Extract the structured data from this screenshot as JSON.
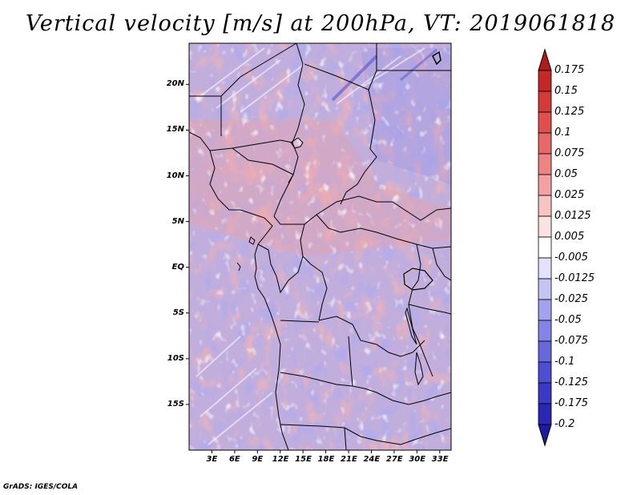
{
  "title": "Vertical velocity [m/s] at 200hPa, VT: 2019061818",
  "credit": "GrADS: IGES/COLA",
  "map": {
    "region": "Central Africa",
    "lat_ticks": [
      "20N",
      "15N",
      "10N",
      "5N",
      "EQ",
      "5S",
      "10S",
      "15S"
    ],
    "lat_values": [
      20,
      15,
      10,
      5,
      0,
      -5,
      -10,
      -15
    ],
    "lon_ticks": [
      "3E",
      "6E",
      "9E",
      "12E",
      "15E",
      "18E",
      "21E",
      "24E",
      "27E",
      "30E",
      "33E"
    ],
    "lon_values": [
      3,
      6,
      9,
      12,
      15,
      18,
      21,
      24,
      27,
      30,
      33
    ],
    "lat_range": [
      -20,
      24.5
    ],
    "lon_range": [
      0,
      34.5
    ]
  },
  "colorbar": {
    "labels": [
      "0.175",
      "0.15",
      "0.125",
      "0.1",
      "0.075",
      "0.05",
      "0.025",
      "0.0125",
      "0.005",
      "-0.005",
      "-0.0125",
      "-0.025",
      "-0.05",
      "-0.075",
      "-0.1",
      "-0.125",
      "-0.175",
      "-0.2"
    ],
    "colors": [
      "#b01c1c",
      "#c42828",
      "#d43a3a",
      "#e04e4e",
      "#e66868",
      "#ec8484",
      "#f2a2a2",
      "#f7c4c4",
      "#fbe2e2",
      "#ffffff",
      "#e2e2fb",
      "#c4c4f5",
      "#a2a2ee",
      "#8484e6",
      "#6868dc",
      "#4e4ed2",
      "#3a3ac6",
      "#2828b4",
      "#1c1ca0"
    ]
  }
}
